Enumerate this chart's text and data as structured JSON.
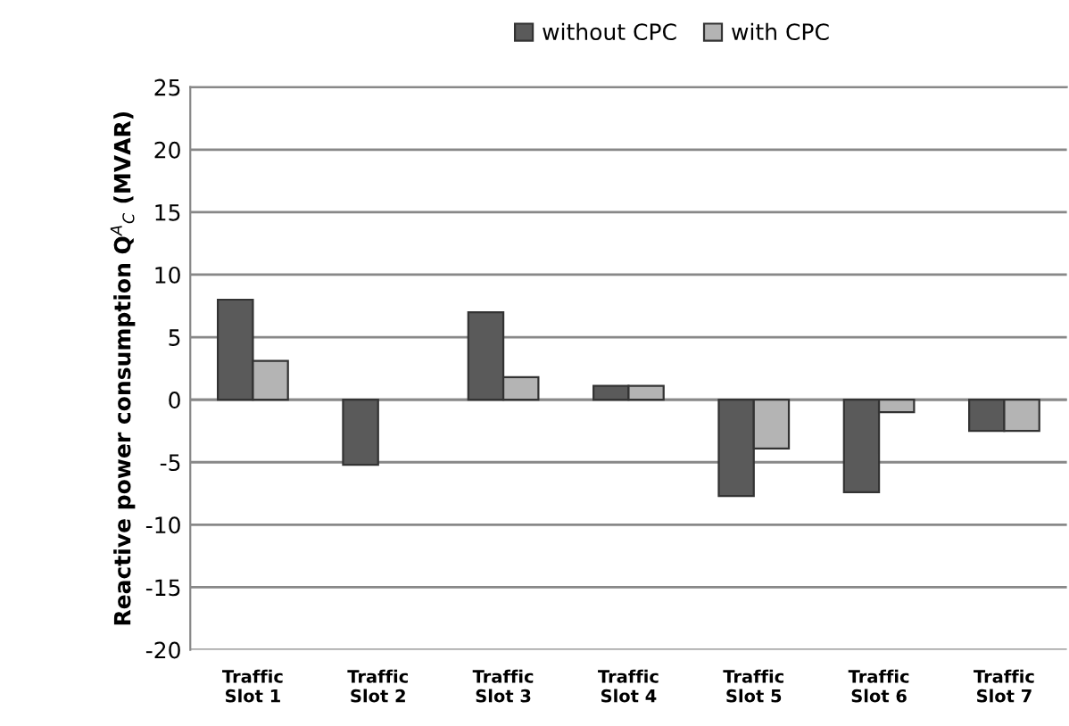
{
  "chart_data": {
    "type": "bar",
    "ylabel": "Reactive power consumption Q$^{A}$$_{C}$ (MVAR)",
    "categories": [
      "Traffic\nSlot 1",
      "Traffic\nSlot 2",
      "Traffic\nSlot 3",
      "Traffic\nSlot 4",
      "Traffic\nSlot 5",
      "Traffic\nSlot 6",
      "Traffic\nSlot 7"
    ],
    "series": [
      {
        "name": "without CPC",
        "color": "#5a5a5a",
        "values": [
          8,
          -5.2,
          7,
          1.1,
          -7.7,
          -7.4,
          -2.5
        ]
      },
      {
        "name": "with CPC",
        "color": "#b4b4b4",
        "values": [
          3.1,
          null,
          1.8,
          1.1,
          -3.9,
          -1.0,
          -2.5
        ]
      }
    ],
    "ylim": [
      -20,
      25
    ],
    "yticks": [
      -20,
      -15,
      -10,
      -5,
      0,
      5,
      10,
      15,
      20,
      25
    ],
    "grid": "y",
    "legend": "top"
  }
}
